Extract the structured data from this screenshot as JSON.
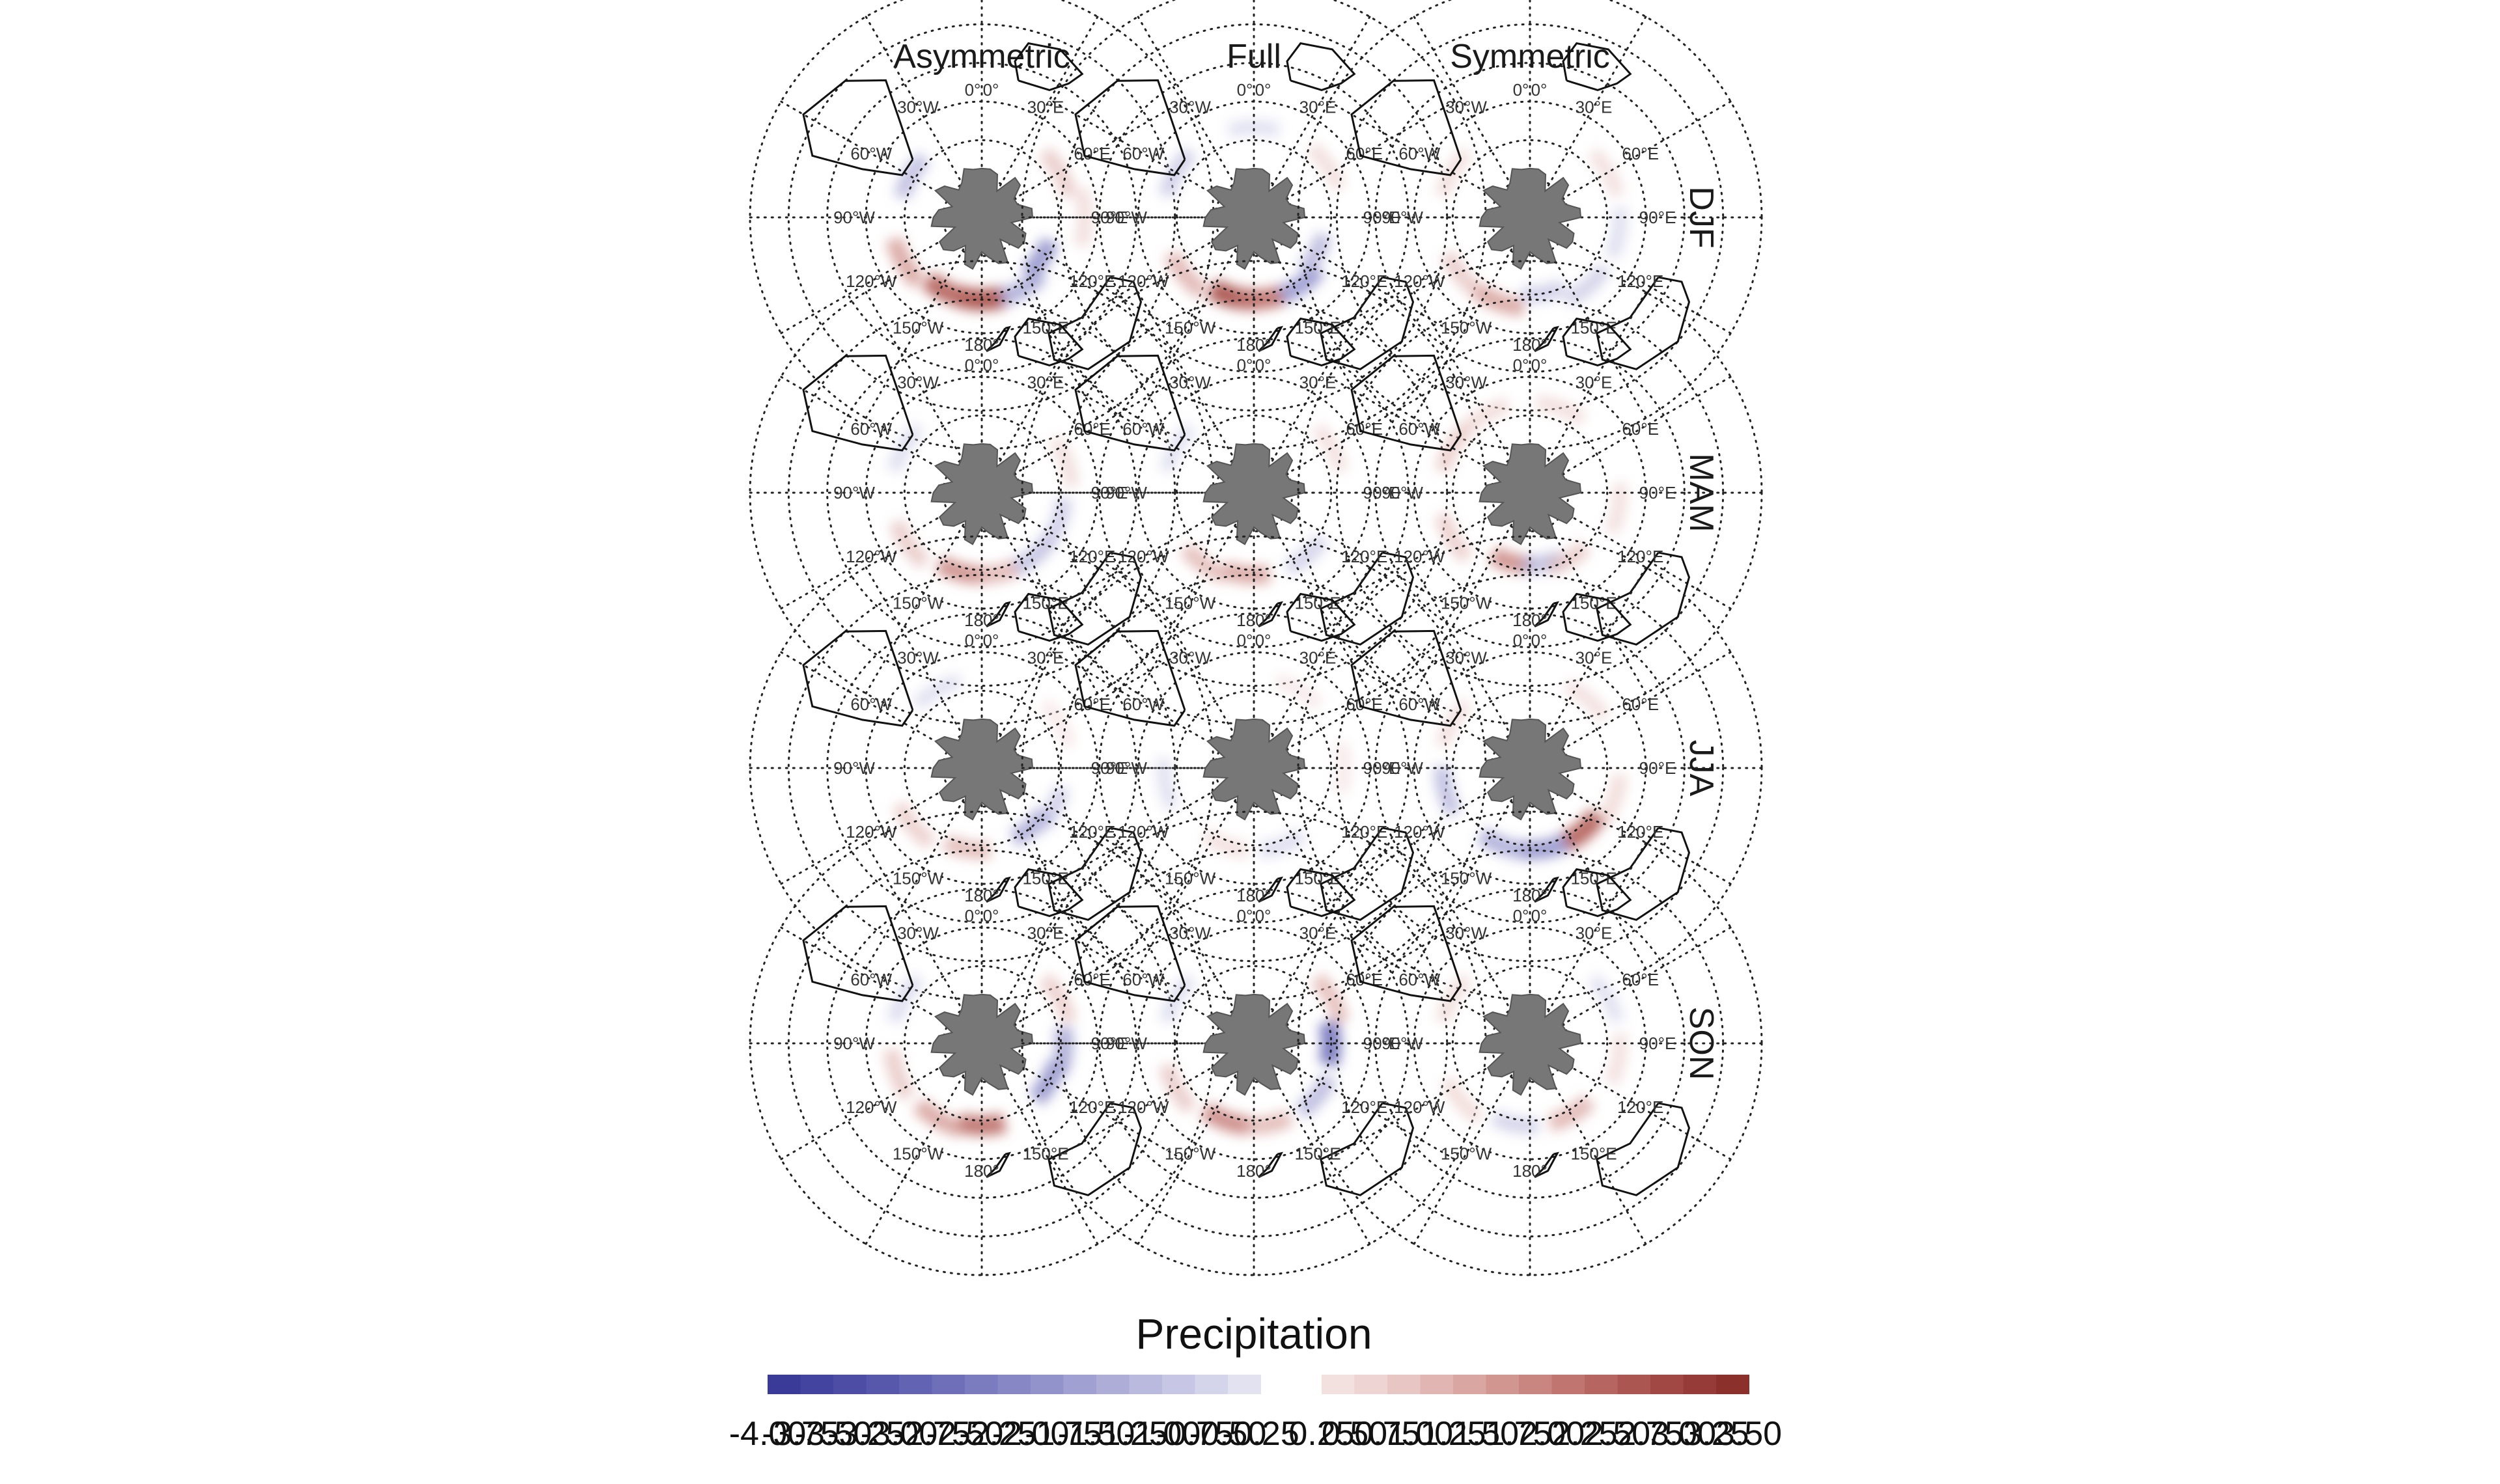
{
  "chart_data": {
    "type": "heatmap",
    "projection": "south-polar-stereographic",
    "columns": [
      "Asymmetric",
      "Full",
      "Symmetric"
    ],
    "rows": [
      "DJF",
      "MAM",
      "JJA",
      "SON"
    ],
    "polar_labels": [
      "0°",
      "0°",
      "30°E",
      "60°E",
      "90°E",
      "120°E",
      "150°E",
      "180°",
      "150°W",
      "120°W",
      "90°W",
      "60°W",
      "30°W"
    ],
    "legend": {
      "title": "Precipitation",
      "placement": "bottom",
      "negative_colors": [
        "#3a3a99",
        "#4343a0",
        "#4d4da6",
        "#5757ac",
        "#6363b3",
        "#6f6fb9",
        "#7b7bc0",
        "#8787c6",
        "#9393cc",
        "#a0a0d2",
        "#adadd8",
        "#babadf",
        "#c7c7e5",
        "#d4d4eb",
        "#e2e2f1"
      ],
      "positive_colors": [
        "#f3e1e0",
        "#eed4d2",
        "#e8c6c3",
        "#e1b6b2",
        "#daa6a1",
        "#d29690",
        "#c98580",
        "#c07570",
        "#b66560",
        "#ac5651",
        "#a14844",
        "#963b37",
        "#8c302c"
      ],
      "negative_labels": [
        "-4.00",
        "-3.75",
        "-3.50",
        "-3.25",
        "-3.00",
        "-2.75",
        "-2.50",
        "-2.25",
        "-2.00",
        "-1.75",
        "-1.50",
        "-1.25",
        "-1.00",
        "-0.75",
        "-0.50",
        "-0.25"
      ],
      "positive_labels": [
        "0.25",
        "0.50",
        "0.75",
        "1.00",
        "1.25",
        "1.50",
        "1.75",
        "2.00",
        "2.25",
        "2.50",
        "2.75",
        "3.00",
        "3.25",
        "3.50"
      ]
    },
    "panels": [
      {
        "row": "DJF",
        "column": "Asymmetric",
        "anomalies": [
          {
            "lon": 180,
            "lat": -58,
            "value": 2.4
          },
          {
            "lon": 205,
            "lat": -58,
            "value": 2.0
          },
          {
            "lon": 150,
            "lat": -58,
            "value": -1.3
          },
          {
            "lon": 125,
            "lat": -62,
            "value": -1.6
          },
          {
            "lon": 240,
            "lat": -55,
            "value": 1.3
          },
          {
            "lon": 300,
            "lat": -58,
            "value": -1.1
          },
          {
            "lon": 60,
            "lat": -55,
            "value": 0.9
          },
          {
            "lon": 90,
            "lat": -50,
            "value": 0.6
          }
        ]
      },
      {
        "row": "DJF",
        "column": "Full",
        "anomalies": [
          {
            "lon": 195,
            "lat": -58,
            "value": 2.3
          },
          {
            "lon": 175,
            "lat": -58,
            "value": 1.9
          },
          {
            "lon": 145,
            "lat": -58,
            "value": -1.5
          },
          {
            "lon": 120,
            "lat": -62,
            "value": -1.2
          },
          {
            "lon": 230,
            "lat": -55,
            "value": 1.2
          },
          {
            "lon": 300,
            "lat": -55,
            "value": -0.9
          },
          {
            "lon": 55,
            "lat": -55,
            "value": 0.6
          },
          {
            "lon": 0,
            "lat": -55,
            "value": -0.5
          }
        ]
      },
      {
        "row": "DJF",
        "column": "Symmetric",
        "anomalies": [
          {
            "lon": 200,
            "lat": -55,
            "value": 1.3
          },
          {
            "lon": 170,
            "lat": -60,
            "value": -0.9
          },
          {
            "lon": 140,
            "lat": -55,
            "value": -0.8
          },
          {
            "lon": 230,
            "lat": -55,
            "value": 0.9
          },
          {
            "lon": 300,
            "lat": -55,
            "value": 0.6
          },
          {
            "lon": 60,
            "lat": -55,
            "value": 0.5
          },
          {
            "lon": 100,
            "lat": -55,
            "value": -0.6
          }
        ]
      },
      {
        "row": "MAM",
        "column": "Asymmetric",
        "anomalies": [
          {
            "lon": 195,
            "lat": -58,
            "value": 1.5
          },
          {
            "lon": 170,
            "lat": -58,
            "value": 1.2
          },
          {
            "lon": 140,
            "lat": -58,
            "value": -1.0
          },
          {
            "lon": 110,
            "lat": -58,
            "value": -0.9
          },
          {
            "lon": 235,
            "lat": -55,
            "value": 0.9
          },
          {
            "lon": 300,
            "lat": -55,
            "value": -0.6
          },
          {
            "lon": 70,
            "lat": -55,
            "value": 0.6
          }
        ]
      },
      {
        "row": "MAM",
        "column": "Full",
        "anomalies": [
          {
            "lon": 185,
            "lat": -58,
            "value": 1.3
          },
          {
            "lon": 215,
            "lat": -56,
            "value": 1.0
          },
          {
            "lon": 140,
            "lat": -58,
            "value": -0.8
          },
          {
            "lon": 300,
            "lat": -55,
            "value": -0.5
          },
          {
            "lon": 60,
            "lat": -55,
            "value": 0.5
          }
        ]
      },
      {
        "row": "MAM",
        "column": "Symmetric",
        "anomalies": [
          {
            "lon": 195,
            "lat": -62,
            "value": 1.5
          },
          {
            "lon": 170,
            "lat": -62,
            "value": -1.1
          },
          {
            "lon": 150,
            "lat": -60,
            "value": 0.9
          },
          {
            "lon": 240,
            "lat": -55,
            "value": 0.8
          },
          {
            "lon": 300,
            "lat": -55,
            "value": 0.8
          },
          {
            "lon": 330,
            "lat": -55,
            "value": 0.7
          },
          {
            "lon": 20,
            "lat": -55,
            "value": 0.6
          },
          {
            "lon": 100,
            "lat": -55,
            "value": 0.5
          }
        ]
      },
      {
        "row": "JJA",
        "column": "Asymmetric",
        "anomalies": [
          {
            "lon": 190,
            "lat": -58,
            "value": 1.1
          },
          {
            "lon": 140,
            "lat": -60,
            "value": -1.3
          },
          {
            "lon": 120,
            "lat": -58,
            "value": -0.9
          },
          {
            "lon": 230,
            "lat": -55,
            "value": 0.8
          },
          {
            "lon": 330,
            "lat": -55,
            "value": -0.5
          },
          {
            "lon": 60,
            "lat": -55,
            "value": 0.4
          }
        ]
      },
      {
        "row": "JJA",
        "column": "Full",
        "anomalies": [
          {
            "lon": 160,
            "lat": -58,
            "value": -0.7
          },
          {
            "lon": 200,
            "lat": -58,
            "value": 0.6
          },
          {
            "lon": 260,
            "lat": -55,
            "value": -0.5
          },
          {
            "lon": 90,
            "lat": -55,
            "value": 0.4
          },
          {
            "lon": 30,
            "lat": -55,
            "value": 0.4
          }
        ]
      },
      {
        "row": "JJA",
        "column": "Symmetric",
        "anomalies": [
          {
            "lon": 140,
            "lat": -58,
            "value": 2.0
          },
          {
            "lon": 170,
            "lat": -58,
            "value": -1.6
          },
          {
            "lon": 200,
            "lat": -58,
            "value": -1.3
          },
          {
            "lon": 255,
            "lat": -56,
            "value": -1.1
          },
          {
            "lon": 110,
            "lat": -55,
            "value": 0.7
          },
          {
            "lon": 300,
            "lat": -55,
            "value": 0.5
          },
          {
            "lon": 40,
            "lat": -55,
            "value": 0.5
          }
        ]
      },
      {
        "row": "SON",
        "column": "Asymmetric",
        "anomalies": [
          {
            "lon": 180,
            "lat": -58,
            "value": 1.9
          },
          {
            "lon": 210,
            "lat": -56,
            "value": 1.3
          },
          {
            "lon": 120,
            "lat": -60,
            "value": -1.6
          },
          {
            "lon": 95,
            "lat": -58,
            "value": -1.4
          },
          {
            "lon": 250,
            "lat": -55,
            "value": 0.9
          },
          {
            "lon": 300,
            "lat": -55,
            "value": -0.7
          },
          {
            "lon": 60,
            "lat": -55,
            "value": 0.8
          }
        ]
      },
      {
        "row": "SON",
        "column": "Full",
        "anomalies": [
          {
            "lon": 200,
            "lat": -58,
            "value": 1.6
          },
          {
            "lon": 170,
            "lat": -58,
            "value": 1.1
          },
          {
            "lon": 90,
            "lat": -60,
            "value": -2.0
          },
          {
            "lon": 130,
            "lat": -58,
            "value": -1.2
          },
          {
            "lon": 240,
            "lat": -55,
            "value": 0.9
          },
          {
            "lon": 60,
            "lat": -55,
            "value": 1.0
          },
          {
            "lon": 300,
            "lat": -55,
            "value": -0.6
          }
        ]
      },
      {
        "row": "SON",
        "column": "Symmetric",
        "anomalies": [
          {
            "lon": 150,
            "lat": -58,
            "value": 1.2
          },
          {
            "lon": 190,
            "lat": -58,
            "value": -0.8
          },
          {
            "lon": 230,
            "lat": -55,
            "value": 0.7
          },
          {
            "lon": 300,
            "lat": -55,
            "value": 0.6
          },
          {
            "lon": 60,
            "lat": -55,
            "value": -0.5
          },
          {
            "lon": 100,
            "lat": -55,
            "value": 0.5
          }
        ]
      }
    ]
  }
}
